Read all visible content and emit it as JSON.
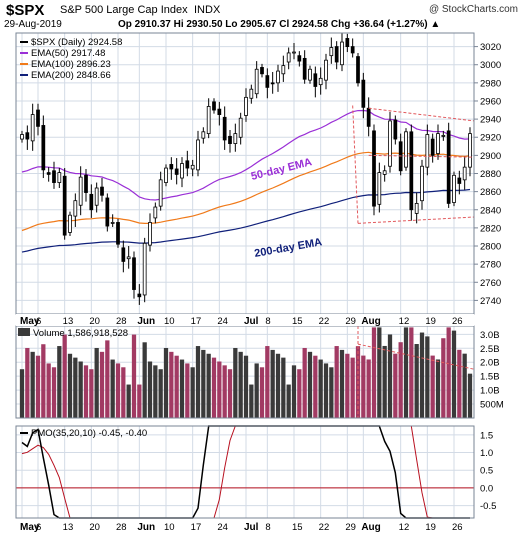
{
  "header": {
    "symbol": "$SPX",
    "name": "S&P 500 Large Cap Index",
    "exchange": "INDX",
    "watermark": "@ StockCharts.com",
    "date": "29-Aug-2019",
    "ohlc": "Op 2910.37  Hi 2930.50  Lo 2905.67  Cl 2924.58  Chg +36.64 (+1.27%) ▲"
  },
  "colors": {
    "panel_bg": "#ffffff",
    "frame": "#7a8596",
    "grid": "#d3dbe6",
    "band_bg": "#ffffff",
    "ema50": "#9a2fd6",
    "ema100": "#f07a1a",
    "ema200": "#10207a",
    "candle": "#000000",
    "vol_up": "#3a3a3a",
    "vol_down": "#a23a63",
    "pmo": "#000000",
    "pmo_signal": "#b8101f",
    "channel": "#e2585c",
    "zero": "#b8101f"
  },
  "chart_data": [
    {
      "type": "candlestick",
      "title": "$SPX (Daily) 2924.58",
      "legend": [
        {
          "name": "$SPX (Daily) 2924.58",
          "color": "#000000"
        },
        {
          "name": "EMA(50) 2917.48",
          "color": "#9a2fd6"
        },
        {
          "name": "EMA(100) 2896.23",
          "color": "#f07a1a"
        },
        {
          "name": "EMA(200) 2848.66",
          "color": "#10207a"
        }
      ],
      "legend_position": "top-left",
      "annotations": [
        "50-day EMA",
        "200-day EMA"
      ],
      "x_ticks": [
        "May",
        "6",
        "13",
        "20",
        "28",
        "Jun",
        "10",
        "17",
        "24",
        "Jul",
        "8",
        "15",
        "22",
        "29",
        "Aug",
        "12",
        "19",
        "26"
      ],
      "y_ticks": [
        2740,
        2760,
        2780,
        2800,
        2820,
        2840,
        2860,
        2880,
        2900,
        2920,
        2940,
        2960,
        2980,
        3000,
        3020
      ],
      "ylim": [
        2725,
        3035
      ],
      "grid": true,
      "close_x": [
        "May 1",
        "May 2",
        "May 3",
        "May 6",
        "May 7",
        "May 8",
        "May 9",
        "May 10",
        "May 13",
        "May 14",
        "May 15",
        "May 16",
        "May 17",
        "May 20",
        "May 21",
        "May 22",
        "May 23",
        "May 24",
        "May 28",
        "May 29",
        "May 30",
        "May 31",
        "Jun 3",
        "Jun 4",
        "Jun 5",
        "Jun 6",
        "Jun 7",
        "Jun 10",
        "Jun 11",
        "Jun 12",
        "Jun 13",
        "Jun 14",
        "Jun 17",
        "Jun 18",
        "Jun 19",
        "Jun 20",
        "Jun 21",
        "Jun 24",
        "Jun 25",
        "Jun 26",
        "Jun 27",
        "Jun 28",
        "Jul 1",
        "Jul 2",
        "Jul 3",
        "Jul 5",
        "Jul 8",
        "Jul 9",
        "Jul 10",
        "Jul 11",
        "Jul 12",
        "Jul 15",
        "Jul 16",
        "Jul 17",
        "Jul 18",
        "Jul 19",
        "Jul 22",
        "Jul 23",
        "Jul 24",
        "Jul 25",
        "Jul 26",
        "Jul 29",
        "Jul 30",
        "Jul 31",
        "Aug 1",
        "Aug 2",
        "Aug 5",
        "Aug 6",
        "Aug 7",
        "Aug 8",
        "Aug 9",
        "Aug 12",
        "Aug 13",
        "Aug 14",
        "Aug 15",
        "Aug 16",
        "Aug 19",
        "Aug 20",
        "Aug 21",
        "Aug 22",
        "Aug 23",
        "Aug 26",
        "Aug 27",
        "Aug 28",
        "Aug 29"
      ],
      "close": [
        2923,
        2918,
        2945,
        2932,
        2884,
        2879,
        2870,
        2881,
        2812,
        2834,
        2850,
        2876,
        2859,
        2840,
        2864,
        2856,
        2822,
        2826,
        2802,
        2783,
        2788,
        2752,
        2744,
        2803,
        2826,
        2843,
        2873,
        2886,
        2885,
        2879,
        2891,
        2886,
        2889,
        2917,
        2926,
        2954,
        2950,
        2945,
        2917,
        2913,
        2924,
        2941,
        2964,
        2973,
        2995,
        2990,
        2975,
        2979,
        2993,
        2999,
        3013,
        3014,
        3004,
        2984,
        2995,
        2976,
        2985,
        3005,
        3019,
        3003,
        3025,
        3020,
        3013,
        2980,
        2953,
        2932,
        2844,
        2881,
        2883,
        2938,
        2918,
        2883,
        2926,
        2840,
        2847,
        2888,
        2923,
        2900,
        2924,
        2922,
        2847,
        2878,
        2869,
        2887,
        2924
      ]
    },
    {
      "type": "bar",
      "title": "Volume 1,586,918,528",
      "y_ticks": [
        "500M",
        "1.0B",
        "1.5B",
        "2.0B",
        "2.5B",
        "3.0B"
      ],
      "ylim": [
        0,
        3.3
      ],
      "unit": "B"
    },
    {
      "type": "line",
      "title": "PMO(35,20,10) -0.45, -0.40",
      "series": [
        {
          "name": "PMO(35,20,10)"
        },
        {
          "name": "Signal"
        }
      ],
      "y_ticks": [
        -0.5,
        0.0,
        0.5,
        1.0,
        1.5
      ],
      "ylim": [
        -0.85,
        1.75
      ]
    }
  ]
}
